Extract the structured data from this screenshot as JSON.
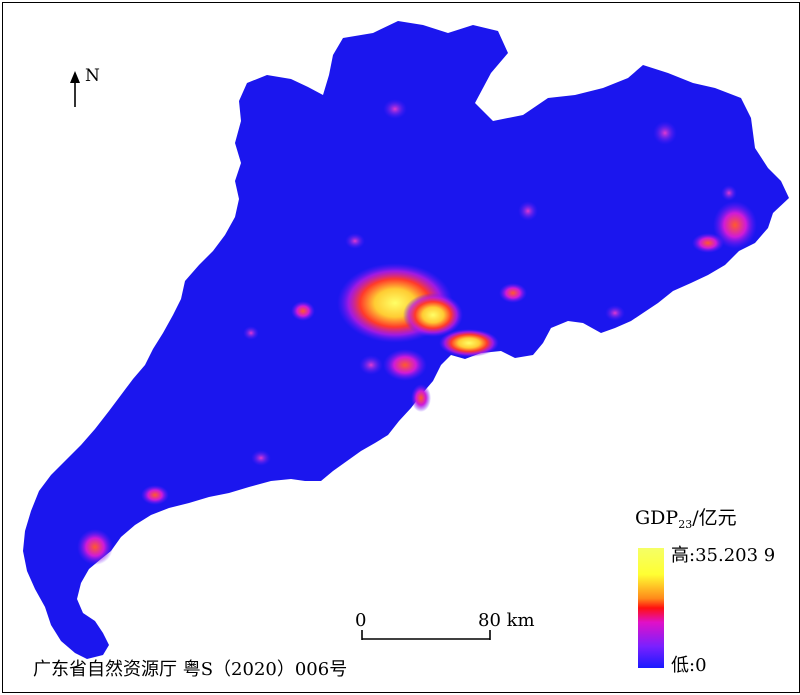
{
  "north_arrow": {
    "label": "N"
  },
  "legend": {
    "title_main": "GDP",
    "title_sub": "23",
    "title_unit": "/亿元",
    "high_label": "高:35.203 9",
    "low_label": "低:0",
    "colors": [
      "#1a1aff",
      "#7a20ff",
      "#e010c8",
      "#ff1010",
      "#ff8a1a",
      "#ffff33",
      "#f5ff66"
    ]
  },
  "scale_bar": {
    "start_label": "0",
    "end_label": "80 km"
  },
  "approval_number": "广东省自然资源厅 粤S（2020）006号",
  "map": {
    "fill_color": "#1b16ee",
    "hotspot_colors": [
      "#ffff55",
      "#ff6a1a",
      "#e01ad0"
    ]
  }
}
